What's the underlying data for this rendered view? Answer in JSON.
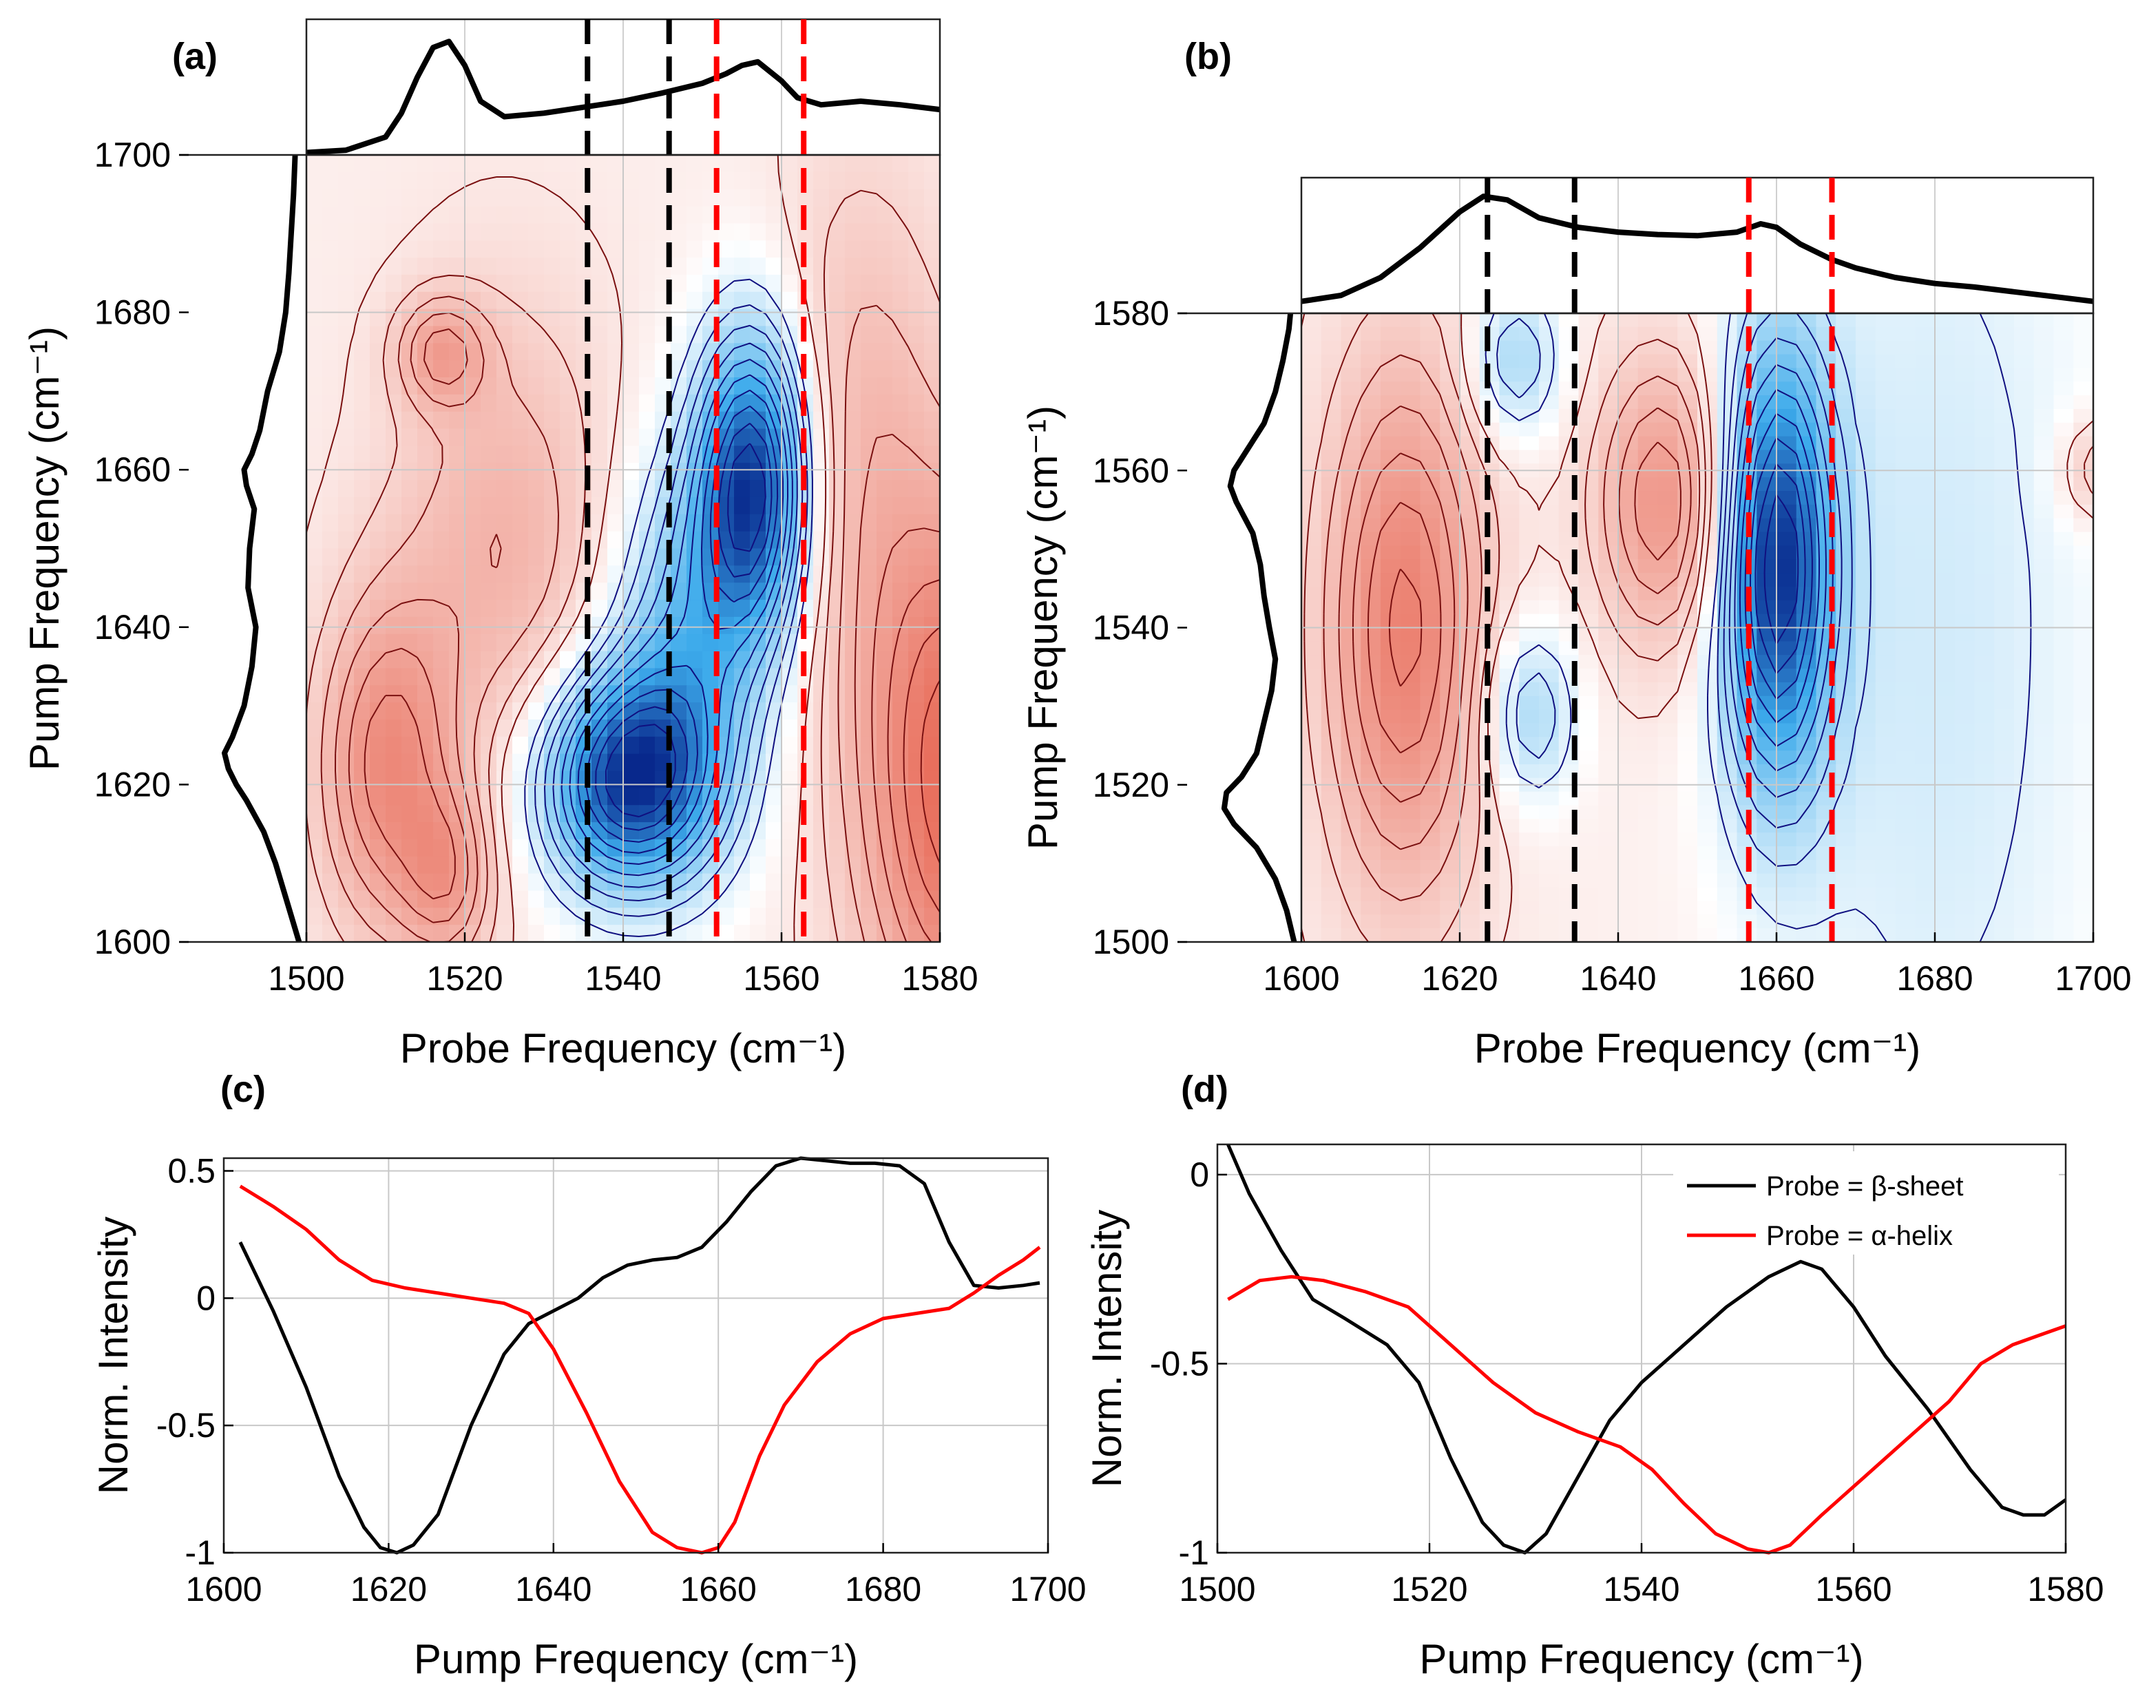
{
  "figure": {
    "background": "#ffffff",
    "positive_color": "#e34a33",
    "negative_color": "#0b5cad",
    "contour_pos": "#7a1010",
    "contour_neg": "#101080"
  },
  "chart_data": [
    {
      "id": "a",
      "type": "heatmap",
      "panel_label": "(a)",
      "xlabel": "Probe Frequency (cm⁻¹)",
      "ylabel": "Pump Frequency (cm⁻¹)",
      "xlim": [
        1500,
        1580
      ],
      "ylim": [
        1600,
        1700
      ],
      "xticks": [
        1500,
        1520,
        1540,
        1560,
        1580
      ],
      "yticks": [
        1600,
        1620,
        1640,
        1660,
        1680,
        1700
      ],
      "grid": true,
      "dashed_lines_black": [
        1535.5,
        1545.8
      ],
      "dashed_lines_red": [
        1551.8,
        1562.8
      ],
      "top_spectrum": {
        "x": [
          1500,
          1505,
          1510,
          1512,
          1514,
          1516,
          1518,
          1520,
          1522,
          1525,
          1530,
          1535,
          1540,
          1545,
          1550,
          1553,
          1555,
          1557,
          1560,
          1562,
          1565,
          1570,
          1575,
          1580
        ],
        "y": [
          0.02,
          0.04,
          0.15,
          0.35,
          0.65,
          0.9,
          0.95,
          0.75,
          0.45,
          0.32,
          0.35,
          0.4,
          0.45,
          0.52,
          0.6,
          0.68,
          0.75,
          0.78,
          0.62,
          0.48,
          0.42,
          0.45,
          0.42,
          0.38
        ]
      },
      "left_spectrum": {
        "y": [
          1600,
          1605,
          1610,
          1614,
          1618,
          1620,
          1622,
          1624,
          1626,
          1630,
          1635,
          1640,
          1645,
          1650,
          1655,
          1658,
          1660,
          1662,
          1665,
          1670,
          1675,
          1680,
          1685,
          1690,
          1695,
          1700
        ],
        "x": [
          0.05,
          0.2,
          0.35,
          0.5,
          0.72,
          0.85,
          0.95,
          1.0,
          0.9,
          0.75,
          0.65,
          0.6,
          0.7,
          0.68,
          0.62,
          0.72,
          0.75,
          0.65,
          0.55,
          0.45,
          0.3,
          0.22,
          0.18,
          0.15,
          0.12,
          0.1
        ]
      },
      "peaks": [
        {
          "x": 1540.5,
          "y": 1620.5,
          "sx": 8,
          "sy": 10,
          "amp": -1.0
        },
        {
          "x": 1556.5,
          "y": 1658.5,
          "sx": 5,
          "sy": 14,
          "amp": -1.0
        },
        {
          "x": 1548,
          "y": 1640,
          "sx": 7,
          "sy": 16,
          "amp": -0.45
        },
        {
          "x": 1510,
          "y": 1622,
          "sx": 6,
          "sy": 15,
          "amp": 0.5
        },
        {
          "x": 1518,
          "y": 1608,
          "sx": 4,
          "sy": 8,
          "amp": 0.35
        },
        {
          "x": 1583,
          "y": 1620,
          "sx": 9,
          "sy": 24,
          "amp": 0.75
        },
        {
          "x": 1525,
          "y": 1650,
          "sx": 10,
          "sy": 22,
          "amp": 0.3
        },
        {
          "x": 1517,
          "y": 1675,
          "sx": 4,
          "sy": 5,
          "amp": 0.35
        },
        {
          "x": 1570,
          "y": 1665,
          "sx": 8,
          "sy": 25,
          "amp": 0.25
        }
      ]
    },
    {
      "id": "b",
      "type": "heatmap",
      "panel_label": "(b)",
      "xlabel": "Probe Frequency (cm⁻¹)",
      "ylabel": "Pump Frequency (cm⁻¹)",
      "xlim": [
        1600,
        1700
      ],
      "ylim": [
        1500,
        1580
      ],
      "xticks": [
        1600,
        1620,
        1640,
        1660,
        1680,
        1700
      ],
      "yticks": [
        1500,
        1520,
        1540,
        1560,
        1580
      ],
      "grid": true,
      "dashed_lines_black": [
        1623.5,
        1634.5
      ],
      "dashed_lines_red": [
        1656.5,
        1667
      ],
      "top_spectrum": {
        "x": [
          1600,
          1605,
          1610,
          1615,
          1620,
          1623,
          1626,
          1630,
          1635,
          1640,
          1645,
          1650,
          1655,
          1658,
          1660,
          1663,
          1667,
          1670,
          1675,
          1680,
          1685,
          1690,
          1695,
          1700
        ],
        "y": [
          0.1,
          0.15,
          0.3,
          0.55,
          0.85,
          0.98,
          0.95,
          0.8,
          0.72,
          0.68,
          0.66,
          0.65,
          0.68,
          0.75,
          0.72,
          0.58,
          0.45,
          0.38,
          0.3,
          0.25,
          0.22,
          0.18,
          0.14,
          0.1
        ]
      },
      "left_spectrum": {
        "y": [
          1500,
          1504,
          1508,
          1512,
          1515,
          1517,
          1519,
          1521,
          1524,
          1528,
          1532,
          1536,
          1540,
          1544,
          1548,
          1552,
          1556,
          1558,
          1560,
          1563,
          1566,
          1570,
          1574,
          1578,
          1580
        ],
        "x": [
          0.05,
          0.15,
          0.3,
          0.55,
          0.85,
          0.98,
          0.95,
          0.75,
          0.55,
          0.45,
          0.35,
          0.3,
          0.38,
          0.45,
          0.5,
          0.6,
          0.82,
          0.9,
          0.85,
          0.65,
          0.45,
          0.3,
          0.2,
          0.12,
          0.1
        ]
      },
      "peaks": [
        {
          "x": 1660,
          "y": 1548,
          "sx": 5,
          "sy": 20,
          "amp": -1.0
        },
        {
          "x": 1613,
          "y": 1540,
          "sx": 7,
          "sy": 24,
          "amp": 0.6
        },
        {
          "x": 1646,
          "y": 1556,
          "sx": 6,
          "sy": 13,
          "amp": 0.5
        },
        {
          "x": 1629,
          "y": 1529,
          "sx": 4,
          "sy": 8,
          "amp": -0.35
        },
        {
          "x": 1627,
          "y": 1574,
          "sx": 4,
          "sy": 7,
          "amp": -0.35
        },
        {
          "x": 1680,
          "y": 1540,
          "sx": 16,
          "sy": 60,
          "amp": -0.2
        },
        {
          "x": 1700,
          "y": 1560,
          "sx": 3,
          "sy": 5,
          "amp": 0.25
        }
      ]
    },
    {
      "id": "c",
      "type": "line",
      "panel_label": "(c)",
      "xlabel": "Pump Frequency (cm⁻¹)",
      "ylabel": "Norm. Intensity",
      "xlim": [
        1600,
        1700
      ],
      "ylim": [
        -1,
        0.55
      ],
      "xticks": [
        1600,
        1620,
        1640,
        1660,
        1680,
        1700
      ],
      "yticks": [
        0.5,
        0,
        -0.5,
        -1
      ],
      "ytick_labels": [
        "0.5",
        "0",
        "-0.5",
        "-1"
      ],
      "grid": true,
      "series": [
        {
          "name": "Probe = β-sheet",
          "color": "#000000",
          "x": [
            1602,
            1606,
            1610,
            1614,
            1617,
            1619,
            1621,
            1623,
            1626,
            1630,
            1634,
            1637,
            1640,
            1643,
            1646,
            1649,
            1652,
            1655,
            1658,
            1661,
            1664,
            1667,
            1670,
            1673,
            1676,
            1679,
            1682,
            1685,
            1688,
            1691,
            1694,
            1697,
            1699
          ],
          "y": [
            0.22,
            -0.05,
            -0.35,
            -0.7,
            -0.9,
            -0.98,
            -1.0,
            -0.97,
            -0.85,
            -0.5,
            -0.22,
            -0.1,
            -0.05,
            0.0,
            0.08,
            0.13,
            0.15,
            0.16,
            0.2,
            0.3,
            0.42,
            0.52,
            0.55,
            0.54,
            0.53,
            0.53,
            0.52,
            0.45,
            0.22,
            0.05,
            0.04,
            0.05,
            0.06
          ]
        },
        {
          "name": "Probe = α-helix",
          "color": "#ff0000",
          "x": [
            1602,
            1606,
            1610,
            1614,
            1618,
            1622,
            1626,
            1630,
            1634,
            1637,
            1640,
            1644,
            1648,
            1652,
            1655,
            1658,
            1660,
            1662,
            1665,
            1668,
            1672,
            1676,
            1680,
            1684,
            1688,
            1691,
            1694,
            1697,
            1699
          ],
          "y": [
            0.44,
            0.36,
            0.27,
            0.15,
            0.07,
            0.04,
            0.02,
            0.0,
            -0.02,
            -0.06,
            -0.2,
            -0.45,
            -0.72,
            -0.92,
            -0.98,
            -1.0,
            -0.98,
            -0.88,
            -0.62,
            -0.42,
            -0.25,
            -0.14,
            -0.08,
            -0.06,
            -0.04,
            0.02,
            0.09,
            0.15,
            0.2
          ]
        }
      ]
    },
    {
      "id": "d",
      "type": "line",
      "panel_label": "(d)",
      "xlabel": "Pump Frequency (cm⁻¹)",
      "ylabel": "Norm. Intensity",
      "xlim": [
        1500,
        1580
      ],
      "ylim": [
        -1,
        0.08
      ],
      "xticks": [
        1500,
        1520,
        1540,
        1560,
        1580
      ],
      "yticks": [
        0,
        -0.5,
        -1
      ],
      "ytick_labels": [
        "0",
        "-0.5",
        "-1"
      ],
      "grid": true,
      "legend": {
        "position": "top-right",
        "entries": [
          "Probe = β-sheet",
          "Probe = α-helix"
        ]
      },
      "series": [
        {
          "name": "Probe = β-sheet",
          "color": "#000000",
          "x": [
            1501,
            1503,
            1506,
            1509,
            1512,
            1516,
            1519,
            1522,
            1525,
            1527,
            1529,
            1531,
            1534,
            1537,
            1540,
            1544,
            1548,
            1552,
            1555,
            1557,
            1560,
            1563,
            1567,
            1571,
            1574,
            1576,
            1578,
            1580
          ],
          "y": [
            0.08,
            -0.05,
            -0.2,
            -0.33,
            -0.38,
            -0.45,
            -0.55,
            -0.75,
            -0.92,
            -0.98,
            -1.0,
            -0.95,
            -0.8,
            -0.65,
            -0.55,
            -0.45,
            -0.35,
            -0.27,
            -0.23,
            -0.25,
            -0.35,
            -0.48,
            -0.62,
            -0.78,
            -0.88,
            -0.9,
            -0.9,
            -0.86
          ]
        },
        {
          "name": "Probe = α-helix",
          "color": "#ff0000",
          "x": [
            1501,
            1504,
            1507,
            1510,
            1514,
            1518,
            1522,
            1526,
            1530,
            1534,
            1538,
            1541,
            1544,
            1547,
            1550,
            1552,
            1554,
            1557,
            1561,
            1565,
            1569,
            1572,
            1575,
            1578,
            1580
          ],
          "y": [
            -0.33,
            -0.28,
            -0.27,
            -0.28,
            -0.31,
            -0.35,
            -0.45,
            -0.55,
            -0.63,
            -0.68,
            -0.72,
            -0.78,
            -0.87,
            -0.95,
            -0.99,
            -1.0,
            -0.98,
            -0.9,
            -0.8,
            -0.7,
            -0.6,
            -0.5,
            -0.45,
            -0.42,
            -0.4
          ]
        }
      ]
    }
  ]
}
